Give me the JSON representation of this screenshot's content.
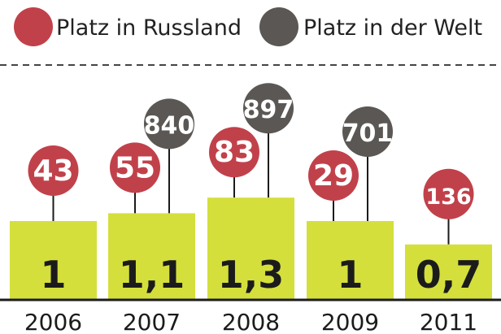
{
  "colors": {
    "bar": "#d4df3c",
    "russia": "#c1414a",
    "world": "#5a5754",
    "text": "#1b1b1b",
    "divider": "#444444"
  },
  "chart_data": {
    "type": "bar",
    "categories": [
      "2006",
      "2007",
      "2008",
      "2009",
      "2011"
    ],
    "values": [
      1,
      1.1,
      1.3,
      1,
      0.7
    ],
    "value_labels": [
      "1",
      "1,1",
      "1,3",
      "1",
      "0,7"
    ],
    "ylim": [
      0,
      1.6
    ],
    "legend": [
      {
        "key": "russia",
        "label": "Platz in Russland"
      },
      {
        "key": "world",
        "label": "Platz in der Welt"
      }
    ],
    "legend_position": "top",
    "rank_russia": [
      "43",
      "55",
      "83",
      "29",
      "136"
    ],
    "rank_world": [
      null,
      "840",
      "897",
      "701",
      null
    ]
  }
}
